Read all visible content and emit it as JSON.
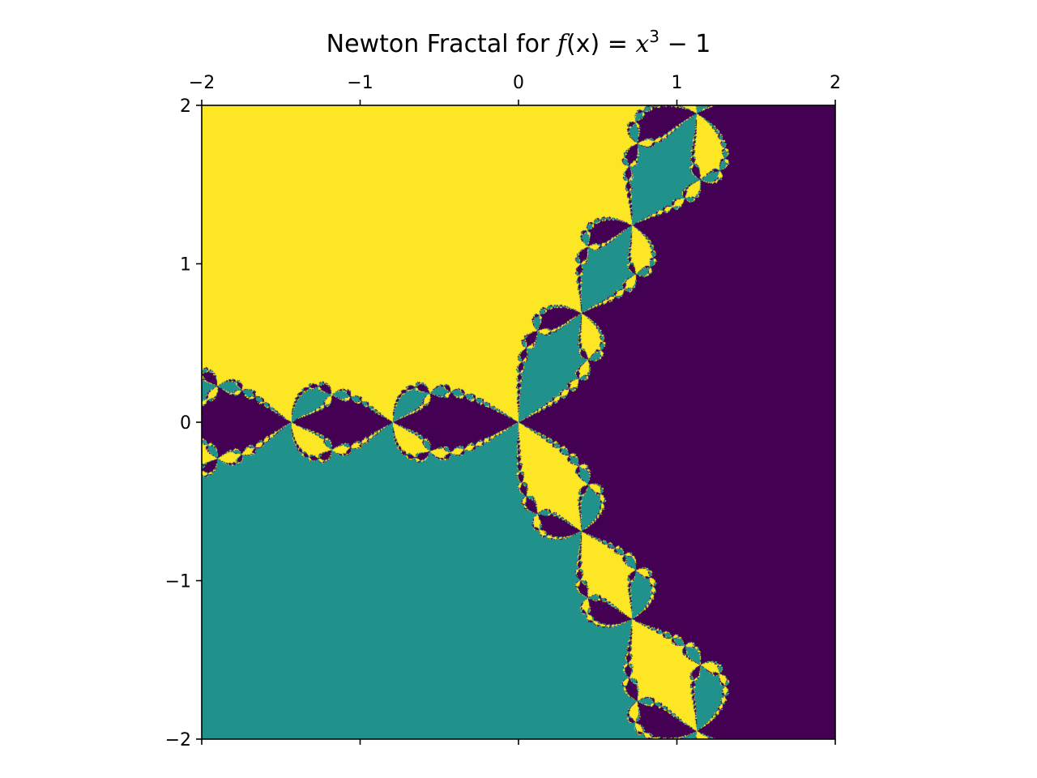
{
  "chart_data": {
    "type": "heatmap",
    "title": "Newton Fractal for f(x) = x³ − 1",
    "title_parts": {
      "prefix": "Newton Fractal for ",
      "f": "f",
      "arg": "(x)",
      "eq": " = ",
      "var": "x",
      "exp": "3",
      "tail": " − 1"
    },
    "xlabel": "",
    "ylabel": "",
    "xlim": [
      -2,
      2
    ],
    "ylim": [
      -2,
      2
    ],
    "x_ticks": [
      -2,
      -1,
      0,
      1,
      2
    ],
    "y_ticks": [
      2,
      1,
      0,
      -1,
      -2
    ],
    "x_tick_labels": [
      "−2",
      "−1",
      "0",
      "1",
      "2"
    ],
    "y_tick_labels": [
      "2",
      "1",
      "0",
      "−1",
      "−2"
    ],
    "x_tick_position": "top",
    "grid": false,
    "legend": "none",
    "colormap": "viridis",
    "function": "x^3 - 1",
    "roots": [
      {
        "re": 1.0,
        "im": 0.0,
        "color": "#440154"
      },
      {
        "re": -0.5,
        "im": 0.8660254,
        "color": "#fde725"
      },
      {
        "re": -0.5,
        "im": -0.8660254,
        "color": "#21918c"
      }
    ],
    "max_iterations": 40,
    "nonconverged_color": "#440154"
  }
}
